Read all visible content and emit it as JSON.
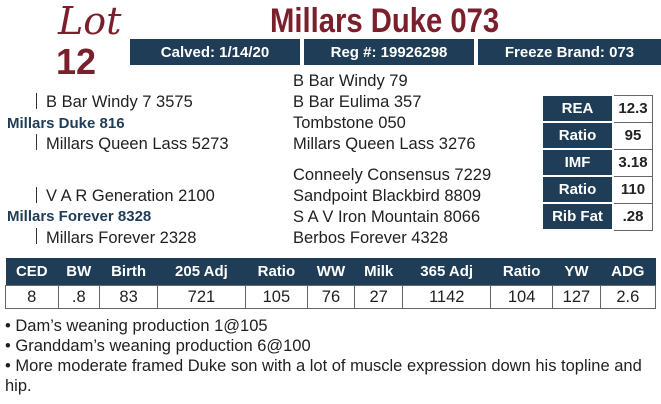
{
  "lot": {
    "word": "Lot",
    "number": "12"
  },
  "title": "Millars Duke 073",
  "info": {
    "calved": "Calved: 1/14/20",
    "reg": "Reg #: 19926298",
    "freeze": "Freeze Brand: 073"
  },
  "pedigree": {
    "sire_sire_sire": "B Bar Windy 79",
    "sire_sire": "B Bar Windy 7 3575",
    "sire_sire_dam": "B Bar Eulima 357",
    "sire": "Millars Duke 816",
    "sire_dam_sire": "Tombstone 050",
    "sire_dam": "Millars Queen Lass 5273",
    "sire_dam_dam": "Millars Queen Lass 3276",
    "dam_sire_sire": "Conneely Consensus 7229",
    "dam_sire": "V A R Generation 2100",
    "dam_sire_dam": "Sandpoint Blackbird 8809",
    "dam": "Millars Forever 8328",
    "dam_dam_sire": "S A V Iron Mountain 8066",
    "dam_dam": "Millars Forever 2328",
    "dam_dam_dam": "Berbos Forever 4328"
  },
  "carcass": [
    {
      "label": "REA",
      "value": "12.3"
    },
    {
      "label": "Ratio",
      "value": "95"
    },
    {
      "label": "IMF",
      "value": "3.18"
    },
    {
      "label": "Ratio",
      "value": "110"
    },
    {
      "label": "Rib Fat",
      "value": ".28"
    }
  ],
  "stats": {
    "headers": [
      "CED",
      "BW",
      "Birth",
      "205 Adj",
      "Ratio",
      "WW",
      "Milk",
      "365 Adj",
      "Ratio",
      "YW",
      "ADG"
    ],
    "values": [
      "8",
      ".8",
      "83",
      "721",
      "105",
      "76",
      "27",
      "1142",
      "104",
      "127",
      "2.6"
    ]
  },
  "notes": [
    "• Dam’s weaning production 1@105",
    "• Granddam’s weaning production 6@100",
    "• More moderate framed Duke son with a lot of muscle expression down his topline and hip."
  ],
  "colors": {
    "maroon": "#7a1f2b",
    "navy": "#1f3d57"
  }
}
